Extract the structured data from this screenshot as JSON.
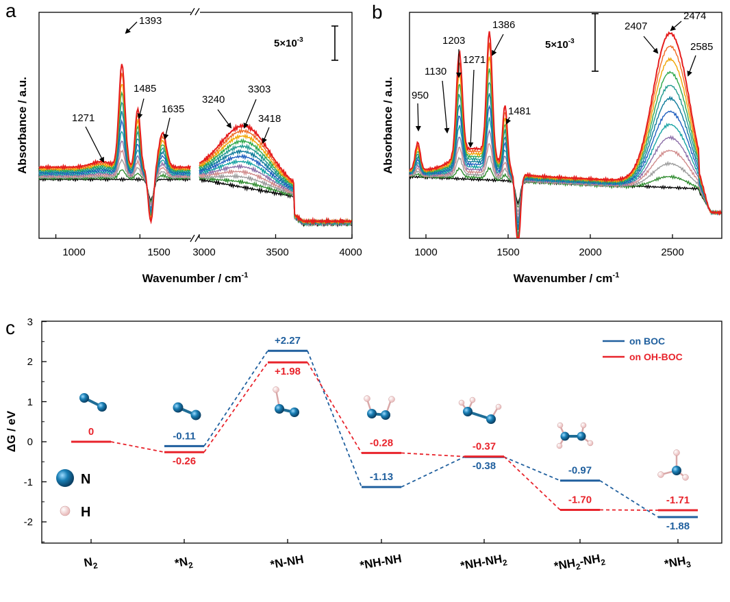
{
  "chart_data": [
    {
      "panel": "a",
      "type": "line",
      "xlabel": "Wavenumber / cm",
      "xlabel_sup": "-1",
      "ylabel": "Absorbance / a.u.",
      "x_segments": [
        {
          "range": [
            900,
            1800
          ],
          "ticks": [
            1000,
            1500
          ]
        },
        {
          "range": [
            3000,
            4000
          ],
          "ticks": [
            3000,
            3500,
            4000
          ]
        }
      ],
      "tick_labels": [
        "1000",
        "1500",
        "3000",
        "3500",
        "4000"
      ],
      "scale_bar": {
        "base": "5×10",
        "exp": "-3"
      },
      "annotations": [
        "1393",
        "1485",
        "1271",
        "1635",
        "3240",
        "3303",
        "3418"
      ],
      "colors": [
        "#000000",
        "#2e8b2e",
        "#9a9a9a",
        "#d08a8a",
        "#8c6fa8",
        "#17a3a3",
        "#1f5fbf",
        "#0d7a9a",
        "#1f9a8f",
        "#2ea84a",
        "#f0a500",
        "#f06a20",
        "#e51d1d"
      ]
    },
    {
      "panel": "b",
      "type": "line",
      "xlabel": "Wavenumber / cm",
      "xlabel_sup": "-1",
      "ylabel": "Absorbance / a.u.",
      "xlim": [
        900,
        2800
      ],
      "tick_labels": [
        "1000",
        "1500",
        "2000",
        "2500"
      ],
      "scale_bar": {
        "base": "5×10",
        "exp": "-3"
      },
      "annotations": [
        "950",
        "1130",
        "1203",
        "1271",
        "1386",
        "1481",
        "2407",
        "2474",
        "2585"
      ]
    },
    {
      "panel": "c",
      "type": "energy-diagram",
      "ylabel": "ΔG / eV",
      "ylim": [
        -2.5,
        3
      ],
      "yticks": [
        "3",
        "2",
        "1",
        "0",
        "-1",
        "-2"
      ],
      "categories": [
        {
          "b": "N",
          "s": "2",
          "a": ""
        },
        {
          "b": "*N",
          "s": "2",
          "a": ""
        },
        {
          "b": "*N-NH",
          "s": "",
          "a": ""
        },
        {
          "b": "*NH-NH",
          "s": "",
          "a": ""
        },
        {
          "b": "*NH-NH",
          "s": "2",
          "a": ""
        },
        {
          "b": "*NH",
          "s": "2",
          "a": "-NH2"
        },
        {
          "b": "*NH",
          "s": "3",
          "a": ""
        }
      ],
      "series": [
        {
          "name": "on BOC",
          "color": "#1f5f9e",
          "values": [
            null,
            -0.11,
            2.27,
            -1.13,
            -0.38,
            -0.97,
            -1.88
          ],
          "labels": [
            "",
            "-0.11",
            "+2.27",
            "-1.13",
            "-0.38",
            "-0.97",
            "-1.88"
          ]
        },
        {
          "name": "on OH-BOC",
          "color": "#e8232b",
          "values": [
            0,
            -0.26,
            1.98,
            -0.28,
            -0.37,
            -1.7,
            -1.71
          ],
          "labels": [
            "0",
            "-0.26",
            "+1.98",
            "-0.28",
            "-0.37",
            "-1.70",
            "-1.71"
          ]
        }
      ],
      "atom_legend": [
        {
          "label": "N",
          "color": "#1a7fb5"
        },
        {
          "label": "H",
          "color": "#f4d4d4"
        }
      ]
    }
  ]
}
